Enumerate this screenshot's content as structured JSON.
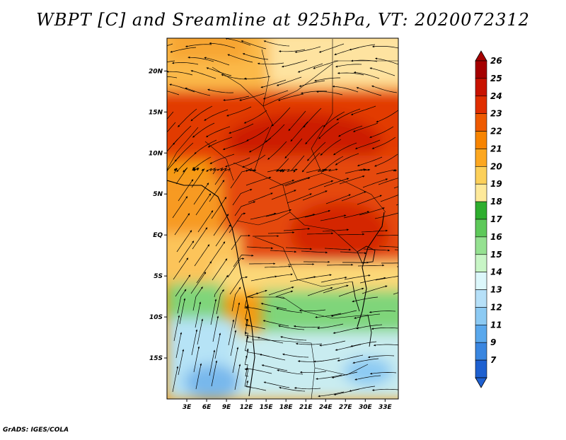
{
  "title": "WBPT [C] and Sreamline at 925hPa, VT: 2020072312",
  "credit": "GrADS: IGES/COLA",
  "map": {
    "lon_range": [
      0,
      35
    ],
    "lat_range": [
      -20,
      24
    ],
    "lat_ticks": [
      {
        "value": 20,
        "label": "20N"
      },
      {
        "value": 15,
        "label": "15N"
      },
      {
        "value": 10,
        "label": "10N"
      },
      {
        "value": 5,
        "label": "5N"
      },
      {
        "value": 0,
        "label": "EQ"
      },
      {
        "value": -5,
        "label": "5S"
      },
      {
        "value": -10,
        "label": "10S"
      },
      {
        "value": -15,
        "label": "15S"
      }
    ],
    "lon_ticks": [
      {
        "value": 3,
        "label": "3E"
      },
      {
        "value": 6,
        "label": "6E"
      },
      {
        "value": 9,
        "label": "9E"
      },
      {
        "value": 12,
        "label": "12E"
      },
      {
        "value": 15,
        "label": "15E"
      },
      {
        "value": 18,
        "label": "18E"
      },
      {
        "value": 21,
        "label": "21E"
      },
      {
        "value": 24,
        "label": "24E"
      },
      {
        "value": 27,
        "label": "27E"
      },
      {
        "value": 30,
        "label": "30E"
      },
      {
        "value": 33,
        "label": "33E"
      }
    ]
  },
  "colorbar": {
    "labels": [
      "26",
      "25",
      "24",
      "23",
      "22",
      "21",
      "20",
      "19",
      "18",
      "17",
      "16",
      "15",
      "14",
      "13",
      "12",
      "11",
      "9",
      "7"
    ],
    "colors": [
      "#a50000",
      "#c81200",
      "#e02e00",
      "#ee5a00",
      "#f78400",
      "#fca720",
      "#fcd05a",
      "#fee99a",
      "#2eae2e",
      "#5ec95a",
      "#95e191",
      "#c8f5c6",
      "#dcf7fb",
      "#b6e0f8",
      "#8ccaf3",
      "#5aa8ec",
      "#3a86e0",
      "#1e60d0"
    ]
  }
}
